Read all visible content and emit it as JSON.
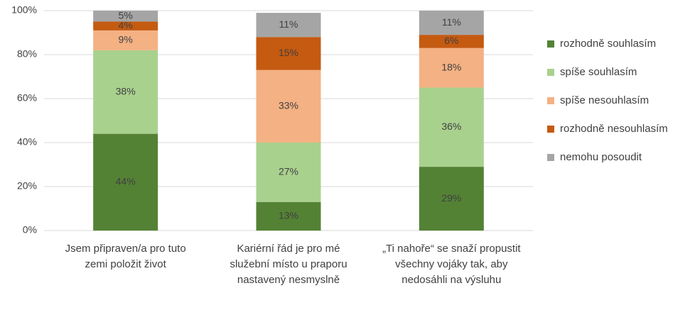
{
  "chart_data": {
    "type": "stacked_bar",
    "categories": [
      "Jsem připraven/a pro tuto zemi položit život",
      "Kariérní řád je pro mé služební místo u praporu nastavený nesmyslně",
      "„Ti nahoře“ se snaží propustit všechny vojáky tak, aby nedosáhli na výsluhu"
    ],
    "series": [
      {
        "name": "rozhodně souhlasím",
        "color": "#548235",
        "values": [
          44,
          13,
          29
        ],
        "value_labels": [
          "44%",
          "13%",
          "29%"
        ]
      },
      {
        "name": "spíše souhlasím",
        "color": "#a9d18e",
        "values": [
          38,
          27,
          36
        ],
        "value_labels": [
          "38%",
          "27%",
          "36%"
        ]
      },
      {
        "name": "spíše nesouhlasím",
        "color": "#f4b183",
        "values": [
          9,
          33,
          18
        ],
        "value_labels": [
          "9%",
          "33%",
          "18%"
        ]
      },
      {
        "name": "rozhodně nesouhlasím",
        "color": "#c55a11",
        "values": [
          4,
          15,
          6
        ],
        "value_labels": [
          "4%",
          "15%",
          "6%"
        ]
      },
      {
        "name": "nemohu posoudit",
        "color": "#a5a5a5",
        "values": [
          5,
          11,
          11
        ],
        "value_labels": [
          "5%",
          "11%",
          "11%"
        ]
      }
    ],
    "ylim": [
      0,
      100
    ],
    "yticks": [
      {
        "value": 0,
        "label": "0%"
      },
      {
        "value": 20,
        "label": "20%"
      },
      {
        "value": 40,
        "label": "40%"
      },
      {
        "value": 60,
        "label": "60%"
      },
      {
        "value": 80,
        "label": "80%"
      },
      {
        "value": 100,
        "label": "100%"
      }
    ],
    "grid": true,
    "legend": "right"
  }
}
